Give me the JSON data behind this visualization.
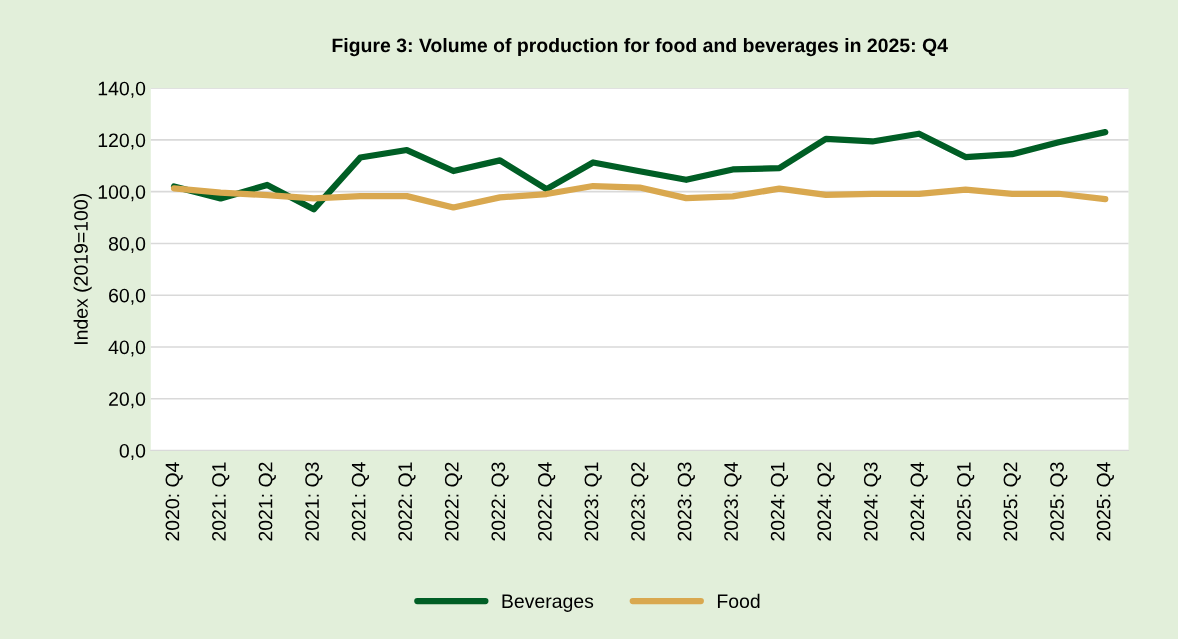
{
  "chart_data": {
    "type": "line",
    "title": "Figure 3: Volume of production for food and beverages in 2025: Q4",
    "ylabel": "Index (2019=100)",
    "categories": [
      "2020: Q4",
      "2021: Q1",
      "2021: Q2",
      "2021: Q3",
      "2021: Q4",
      "2022: Q1",
      "2022: Q2",
      "2022: Q3",
      "2022: Q4",
      "2023: Q1",
      "2023: Q2",
      "2023: Q3",
      "2023: Q4",
      "2024: Q1",
      "2024: Q2",
      "2024: Q3",
      "2024: Q4",
      "2025: Q1",
      "2025: Q2",
      "2025: Q3",
      "2025: Q4"
    ],
    "series": [
      {
        "name": "Beverages",
        "color": "#005e25",
        "values": [
          102.0,
          97.4,
          102.6,
          93.2,
          113.2,
          116.1,
          108.0,
          112.1,
          101.0,
          111.3,
          107.9,
          104.6,
          108.6,
          109.1,
          120.4,
          119.4,
          122.4,
          113.4,
          114.5,
          119.1,
          123.0
        ]
      },
      {
        "name": "Food",
        "color": "#d9a84f",
        "values": [
          101.3,
          99.6,
          98.7,
          97.4,
          98.3,
          98.3,
          93.9,
          97.8,
          99.1,
          102.2,
          101.6,
          97.5,
          98.2,
          101.2,
          98.8,
          99.2,
          99.2,
          100.8,
          99.2,
          99.2,
          97.1
        ]
      }
    ],
    "ylim": [
      0,
      140
    ],
    "yticks": [
      {
        "value": 0,
        "label": "0,0"
      },
      {
        "value": 20,
        "label": "20,0"
      },
      {
        "value": 40,
        "label": "40,0"
      },
      {
        "value": 60,
        "label": "60,0"
      },
      {
        "value": 80,
        "label": "80,0"
      },
      {
        "value": 100,
        "label": "100,0"
      },
      {
        "value": 120,
        "label": "120,0"
      },
      {
        "value": 140,
        "label": "140,0"
      }
    ],
    "grid": "y",
    "legend": "bottom",
    "marker": "none",
    "line_style": "solid"
  }
}
